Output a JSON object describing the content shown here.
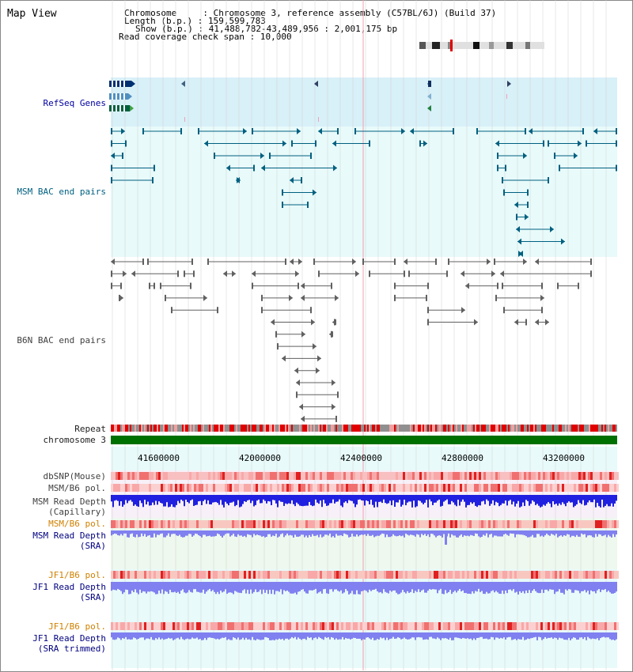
{
  "title": "Map View",
  "info": {
    "chromosome_label": "Chromosome",
    "chromosome_value": "Chromosome 3, reference assembly (C57BL/6J) (Build 37)",
    "length_label": "Length (b.p.)",
    "length_value": "159,599,783",
    "show_label": "Show (b.p.)",
    "show_value": "41,488,782-43,489,956 : 2,001,175 bp",
    "coverage_label": "Read coverage check span",
    "coverage_value": "10,000"
  },
  "tracks": {
    "refseq": "RefSeq Genes",
    "msm_bac": "MSM BAC end pairs",
    "b6n_bac": "B6N BAC end pairs",
    "repeat": "Repeat",
    "chromosome": "chromosome 3",
    "dbsnp": "dbSNP(Mouse)",
    "msm_b6_pol": "MSM/B6 pol.",
    "msm_depth_cap_1": "MSM Read Depth",
    "msm_depth_cap_2": "(Capillary)",
    "msm_b6_pol_sra": "MSM/B6 pol.",
    "msm_depth_sra_1": "MSM Read Depth",
    "msm_depth_sra_2": "(SRA)",
    "jf1_b6_pol": "JF1/B6 pol.",
    "jf1_depth_sra_1": "JF1 Read Depth",
    "jf1_depth_sra_2": "(SRA)",
    "jf1_b6_pol_trim": "JF1/B6 pol.",
    "jf1_depth_trim_1": "JF1 Read Depth",
    "jf1_depth_trim_2": "(SRA trimmed)"
  },
  "axis": {
    "ticks": [
      "41600000",
      "42000000",
      "42400000",
      "42800000",
      "43200000"
    ]
  },
  "colors": {
    "refseq_bg": "#d8f0f8",
    "bac_bg": "#e8fafa",
    "repeat_red": "#e00000",
    "chrom_green": "#007000",
    "depth_blue": "#2020e0",
    "depth_light": "#8080f0",
    "pol_red": "#e04040"
  }
}
